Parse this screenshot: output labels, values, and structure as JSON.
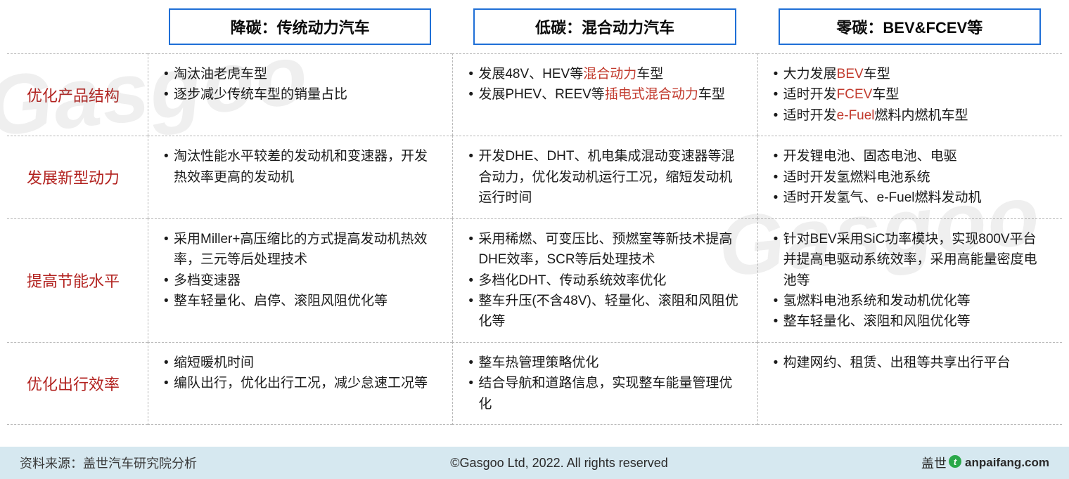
{
  "colors": {
    "header_border": "#1f6fd6",
    "row_label": "#b2221f",
    "highlight": "#c23b2e",
    "dash": "#b8b8b8",
    "footer_bg": "#d6e8f0",
    "brand_green": "#2aa84a"
  },
  "watermark": "Gasgoo",
  "columns": [
    "降碳：传统动力汽车",
    "低碳：混合动力汽车",
    "零碳：BEV&FCEV等"
  ],
  "rows": [
    {
      "label": "优化产品结构",
      "cells": [
        {
          "items": [
            [
              {
                "t": "淘汰油老虎车型"
              }
            ],
            [
              {
                "t": "逐步减少传统车型的销量占比"
              }
            ]
          ]
        },
        {
          "items": [
            [
              {
                "t": "发展48V、HEV等"
              },
              {
                "t": "混合动力",
                "hl": true
              },
              {
                "t": "车型"
              }
            ],
            [
              {
                "t": "发展PHEV、REEV等"
              },
              {
                "t": "插电式混合动力",
                "hl": true
              },
              {
                "t": "车型"
              }
            ]
          ]
        },
        {
          "items": [
            [
              {
                "t": "大力发展"
              },
              {
                "t": "BEV",
                "hl": true
              },
              {
                "t": "车型"
              }
            ],
            [
              {
                "t": "适时开发"
              },
              {
                "t": "FCEV",
                "hl": true
              },
              {
                "t": "车型"
              }
            ],
            [
              {
                "t": "适时开发"
              },
              {
                "t": "e-Fuel",
                "hl": true
              },
              {
                "t": "燃料内燃机车型"
              }
            ]
          ]
        }
      ]
    },
    {
      "label": "发展新型动力",
      "cells": [
        {
          "items": [
            [
              {
                "t": "淘汰性能水平较差的发动机和变速器，开发热效率更高的发动机"
              }
            ]
          ]
        },
        {
          "items": [
            [
              {
                "t": "开发DHE、DHT、机电集成混动变速器等混合动力，优化发动机运行工况，缩短发动机运行时间"
              }
            ]
          ]
        },
        {
          "items": [
            [
              {
                "t": "开发锂电池、固态电池、电驱"
              }
            ],
            [
              {
                "t": "适时开发氢燃料电池系统"
              }
            ],
            [
              {
                "t": "适时开发氢气、e-Fuel燃料发动机"
              }
            ]
          ]
        }
      ]
    },
    {
      "label": "提高节能水平",
      "cells": [
        {
          "items": [
            [
              {
                "t": "采用Miller+高压缩比的方式提高发动机热效率，三元等后处理技术"
              }
            ],
            [
              {
                "t": "多档变速器"
              }
            ],
            [
              {
                "t": "整车轻量化、启停、滚阻风阻优化等"
              }
            ]
          ]
        },
        {
          "items": [
            [
              {
                "t": "采用稀燃、可变压比、预燃室等新技术提高DHE效率，SCR等后处理技术"
              }
            ],
            [
              {
                "t": "多档化DHT、传动系统效率优化"
              }
            ],
            [
              {
                "t": "整车升压(不含48V)、轻量化、滚阻和风阻优化等"
              }
            ]
          ]
        },
        {
          "items": [
            [
              {
                "t": "针对BEV采用SiC功率模块，实现800V平台并提高电驱动系统效率，采用高能量密度电池等"
              }
            ],
            [
              {
                "t": "氢燃料电池系统和发动机优化等"
              }
            ],
            [
              {
                "t": "整车轻量化、滚阻和风阻优化等"
              }
            ]
          ]
        }
      ]
    },
    {
      "label": "优化出行效率",
      "cells": [
        {
          "items": [
            [
              {
                "t": "缩短暖机时间"
              }
            ],
            [
              {
                "t": "编队出行，优化出行工况，减少怠速工况等"
              }
            ]
          ]
        },
        {
          "items": [
            [
              {
                "t": "整车热管理策略优化"
              }
            ],
            [
              {
                "t": "结合导航和道路信息，实现整车能量管理优化"
              }
            ]
          ]
        },
        {
          "items": [
            [
              {
                "t": "构建网约、租赁、出租等共享出行平台"
              }
            ]
          ]
        }
      ]
    }
  ],
  "footer": {
    "source": "资料来源：盖世汽车研究院分析",
    "copyright": "©Gasgoo Ltd, 2022. All rights reserved",
    "brand_left": "盖世",
    "brand_logo": "t",
    "brand_tag": "anpaifang.com"
  }
}
